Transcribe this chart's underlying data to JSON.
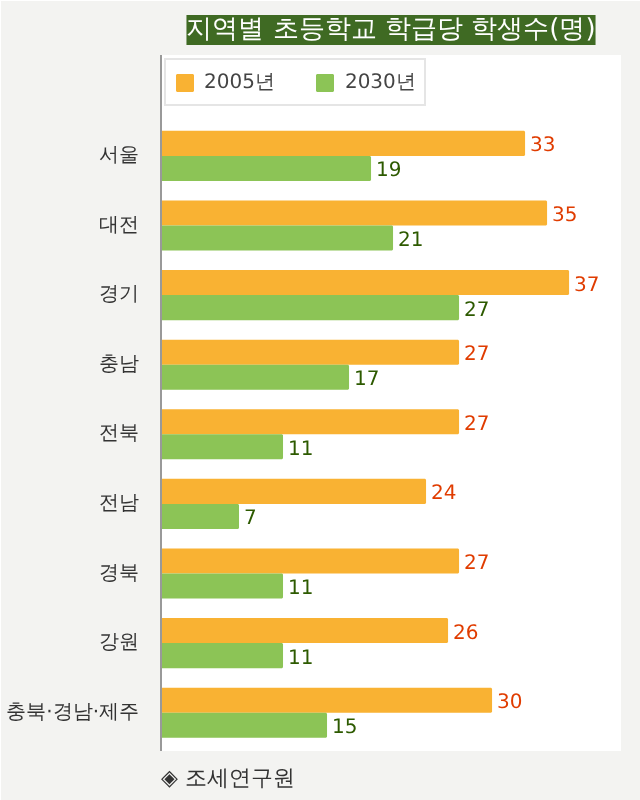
{
  "chart_data": {
    "type": "bar",
    "orientation": "horizontal",
    "title": "지역별 초등학교 학급당 학생수(명)",
    "categories": [
      "서울",
      "대전",
      "경기",
      "충남",
      "전북",
      "전남",
      "경북",
      "강원",
      "충북·경남·제주"
    ],
    "series": [
      {
        "name": "2005년",
        "color": "#f9b233",
        "values": [
          33,
          35,
          37,
          27,
          27,
          24,
          27,
          26,
          30
        ]
      },
      {
        "name": "2030년",
        "color": "#8cc456",
        "values": [
          19,
          21,
          27,
          17,
          11,
          7,
          11,
          11,
          15
        ]
      }
    ],
    "data_labels": true,
    "legend": "top left",
    "grid": false,
    "annotations": [
      "◈ 조세연구원"
    ]
  }
}
